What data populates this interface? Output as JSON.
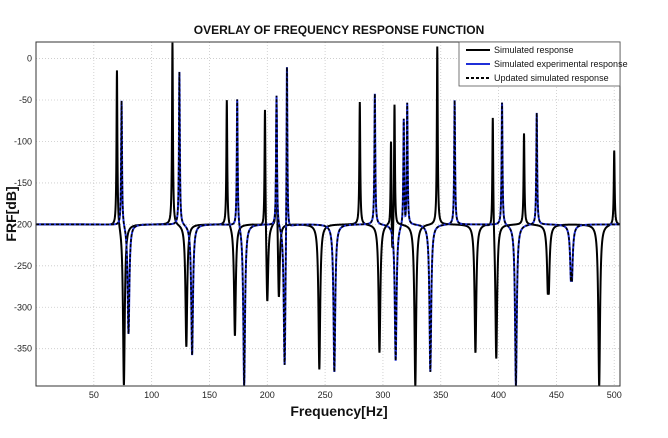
{
  "chart_data": {
    "type": "line",
    "title": "OVERLAY OF FREQUENCY RESPONSE FUNCTION",
    "xlabel": "Frequency[Hz]",
    "ylabel": "FRF[dB]",
    "xlim": [
      0,
      505
    ],
    "ylim": [
      -395,
      20
    ],
    "xticks": [
      50,
      100,
      150,
      200,
      250,
      300,
      350,
      400,
      450,
      500
    ],
    "yticks": [
      0,
      -50,
      -100,
      -150,
      -200,
      -250,
      -300,
      -350
    ],
    "grid": true,
    "legend_position": "top-right",
    "baseline_db": -200,
    "series": [
      {
        "name": "Simulated response",
        "color": "#000000",
        "dash": "solid",
        "resonances": [
          {
            "f": 70,
            "db": -10
          },
          {
            "f": 118,
            "db": 20
          },
          {
            "f": 165,
            "db": -48
          },
          {
            "f": 198,
            "db": -45
          },
          {
            "f": 208,
            "db": -42
          },
          {
            "f": 280,
            "db": -52
          },
          {
            "f": 307,
            "db": -80
          },
          {
            "f": 310,
            "db": -48
          },
          {
            "f": 347,
            "db": 15
          },
          {
            "f": 395,
            "db": -58
          },
          {
            "f": 422,
            "db": -90
          },
          {
            "f": 443,
            "db": -120
          },
          {
            "f": 500,
            "db": -110
          }
        ],
        "antiresonances": [
          {
            "f": 76,
            "db": -395
          },
          {
            "f": 130,
            "db": -348
          },
          {
            "f": 172,
            "db": -335
          },
          {
            "f": 200,
            "db": -300
          },
          {
            "f": 210,
            "db": -295
          },
          {
            "f": 245,
            "db": -375
          },
          {
            "f": 297,
            "db": -355
          },
          {
            "f": 308,
            "db": -245
          },
          {
            "f": 328,
            "db": -395
          },
          {
            "f": 380,
            "db": -355
          },
          {
            "f": 398,
            "db": -365
          },
          {
            "f": 443,
            "db": -355
          },
          {
            "f": 487,
            "db": -395
          }
        ]
      },
      {
        "name": "Simulated experimental response",
        "color": "#1f2fd8",
        "dash": "solid",
        "resonances": [
          {
            "f": 74,
            "db": -48
          },
          {
            "f": 124,
            "db": -15
          },
          {
            "f": 174,
            "db": -45
          },
          {
            "f": 208,
            "db": -42
          },
          {
            "f": 217,
            "db": 20
          },
          {
            "f": 293,
            "db": -42
          },
          {
            "f": 318,
            "db": -70
          },
          {
            "f": 321,
            "db": -52
          },
          {
            "f": 362,
            "db": -50
          },
          {
            "f": 403,
            "db": -52
          },
          {
            "f": 433,
            "db": -65
          },
          {
            "f": 463,
            "db": -122
          }
        ],
        "antiresonances": [
          {
            "f": 80,
            "db": -333
          },
          {
            "f": 135,
            "db": -358
          },
          {
            "f": 180,
            "db": -395
          },
          {
            "f": 215,
            "db": -380
          },
          {
            "f": 258,
            "db": -378
          },
          {
            "f": 311,
            "db": -365
          },
          {
            "f": 341,
            "db": -378
          },
          {
            "f": 415,
            "db": -395
          },
          {
            "f": 463,
            "db": -335
          }
        ],
        "end_db": -265
      },
      {
        "name": "Updated simulated response",
        "color": "#000000",
        "dash": "dashed",
        "same_as": "Simulated experimental response"
      }
    ]
  }
}
